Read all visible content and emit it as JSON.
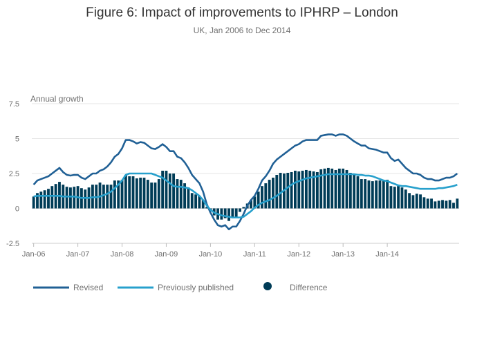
{
  "chart_data": {
    "type": "bar+line",
    "title": "Figure 6: Impact of improvements to IPHRP – London",
    "subtitle": "UK, Jan 2006 to Dec 2014",
    "ylabel": "Annual growth",
    "xlabel": "",
    "ylim": [
      -2.5,
      7.5
    ],
    "yticks": [
      "7.5",
      "5",
      "2.5",
      "0",
      "-2.5"
    ],
    "ytick_values": [
      7.5,
      5,
      2.5,
      0,
      -2.5
    ],
    "xticks": [
      "Jan-06",
      "Jan-07",
      "Jan-08",
      "Jan-09",
      "Jan-10",
      "Jan-11",
      "Jan-12",
      "Jan-13",
      "Jan-14"
    ],
    "x_start": "Jan-06",
    "x_end": "Dec-14",
    "grid": true,
    "legend_position": "bottom",
    "colors": {
      "revised": "#206095",
      "previous": "#27a0cc",
      "difference": "#003c57"
    },
    "series": [
      {
        "name": "Revised",
        "kind": "line",
        "values": [
          1.7,
          2.0,
          2.1,
          2.2,
          2.3,
          2.5,
          2.7,
          2.9,
          2.6,
          2.4,
          2.35,
          2.4,
          2.4,
          2.2,
          2.1,
          2.3,
          2.5,
          2.5,
          2.7,
          2.8,
          3.0,
          3.3,
          3.7,
          3.9,
          4.3,
          4.9,
          4.9,
          4.8,
          4.65,
          4.75,
          4.7,
          4.5,
          4.3,
          4.25,
          4.4,
          4.6,
          4.4,
          4.1,
          4.1,
          3.7,
          3.6,
          3.3,
          2.9,
          2.4,
          2.1,
          1.8,
          1.2,
          0.3,
          -0.3,
          -0.8,
          -1.2,
          -1.3,
          -1.2,
          -1.5,
          -1.3,
          -1.3,
          -0.9,
          -0.4,
          0.2,
          0.6,
          0.9,
          1.4,
          2.0,
          2.3,
          2.7,
          3.2,
          3.5,
          3.7,
          3.9,
          4.1,
          4.3,
          4.5,
          4.6,
          4.8,
          4.9,
          4.9,
          4.9,
          4.9,
          5.2,
          5.25,
          5.3,
          5.3,
          5.2,
          5.3,
          5.3,
          5.2,
          5.0,
          4.8,
          4.65,
          4.5,
          4.5,
          4.3,
          4.25,
          4.2,
          4.1,
          4.0,
          4.0,
          3.6,
          3.4,
          3.5,
          3.2,
          2.9,
          2.7,
          2.5,
          2.5,
          2.4,
          2.2,
          2.1,
          2.1,
          2.0,
          2.0,
          2.1,
          2.2,
          2.2,
          2.3,
          2.5
        ]
      },
      {
        "name": "Previously published",
        "kind": "line",
        "values": [
          0.85,
          0.9,
          0.9,
          0.9,
          0.9,
          0.9,
          0.9,
          0.9,
          0.85,
          0.85,
          0.85,
          0.85,
          0.8,
          0.75,
          0.75,
          0.75,
          0.8,
          0.8,
          0.85,
          0.95,
          1.05,
          1.2,
          1.45,
          1.7,
          2.0,
          2.4,
          2.5,
          2.5,
          2.5,
          2.5,
          2.5,
          2.5,
          2.5,
          2.4,
          2.3,
          2.2,
          2.0,
          1.8,
          1.6,
          1.55,
          1.55,
          1.5,
          1.45,
          1.3,
          1.1,
          0.9,
          0.6,
          0.2,
          -0.1,
          -0.3,
          -0.4,
          -0.5,
          -0.55,
          -0.6,
          -0.65,
          -0.65,
          -0.65,
          -0.6,
          -0.4,
          -0.2,
          0.05,
          0.25,
          0.4,
          0.5,
          0.6,
          0.75,
          0.9,
          1.1,
          1.3,
          1.5,
          1.7,
          1.85,
          1.95,
          2.05,
          2.15,
          2.2,
          2.25,
          2.3,
          2.35,
          2.4,
          2.45,
          2.45,
          2.45,
          2.45,
          2.45,
          2.45,
          2.45,
          2.45,
          2.4,
          2.4,
          2.35,
          2.35,
          2.3,
          2.2,
          2.1,
          2.0,
          1.95,
          1.85,
          1.75,
          1.65,
          1.6,
          1.6,
          1.55,
          1.5,
          1.45,
          1.4,
          1.4,
          1.4,
          1.4,
          1.4,
          1.45,
          1.45,
          1.5,
          1.55,
          1.6,
          1.7
        ]
      },
      {
        "name": "Difference",
        "kind": "bar",
        "values": [
          0.85,
          1.1,
          1.2,
          1.3,
          1.4,
          1.6,
          1.75,
          1.9,
          1.7,
          1.55,
          1.5,
          1.55,
          1.6,
          1.45,
          1.35,
          1.5,
          1.7,
          1.7,
          1.85,
          1.7,
          1.7,
          1.7,
          2.0,
          2.0,
          2.05,
          2.4,
          2.3,
          2.3,
          2.15,
          2.2,
          2.2,
          2.05,
          1.85,
          1.85,
          2.1,
          2.7,
          2.7,
          2.5,
          2.5,
          2.1,
          2.05,
          1.8,
          1.5,
          1.1,
          1.0,
          0.9,
          0.6,
          0.1,
          -0.2,
          -0.5,
          -0.8,
          -0.8,
          -0.7,
          -0.9,
          -0.7,
          -0.6,
          -0.25,
          0.1,
          0.35,
          0.6,
          0.85,
          1.2,
          1.6,
          1.8,
          2.05,
          2.2,
          2.4,
          2.55,
          2.5,
          2.55,
          2.6,
          2.7,
          2.65,
          2.7,
          2.75,
          2.7,
          2.65,
          2.6,
          2.8,
          2.85,
          2.9,
          2.85,
          2.75,
          2.85,
          2.85,
          2.75,
          2.55,
          2.4,
          2.3,
          2.1,
          2.1,
          2.0,
          1.95,
          2.0,
          2.0,
          2.0,
          2.05,
          1.6,
          1.55,
          1.6,
          1.5,
          1.35,
          1.1,
          0.95,
          1.05,
          1.0,
          0.8,
          0.7,
          0.7,
          0.5,
          0.55,
          0.6,
          0.55,
          0.6,
          0.4,
          0.7
        ]
      }
    ]
  }
}
